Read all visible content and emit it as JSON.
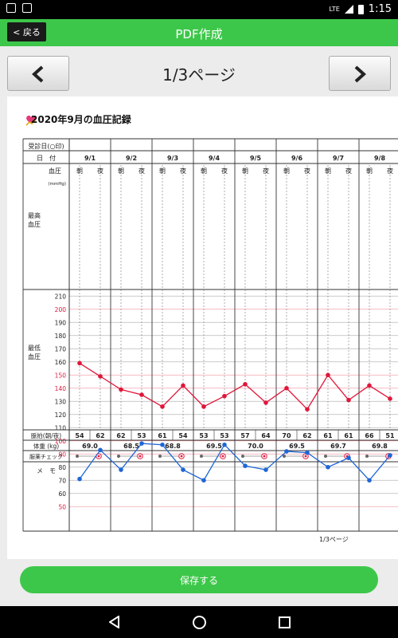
{
  "status_bar": {
    "network": "LTE",
    "time": "1:15"
  },
  "app_bar": {
    "back_label": "< 戻る",
    "title": "PDF作成"
  },
  "pager": {
    "label": "1/3ページ"
  },
  "sheet": {
    "title": "2020年9月の血圧記録",
    "footer_page": "1/3ページ",
    "header": {
      "visit_label": "受診日(○印)",
      "date_label": "日　付",
      "bp_label": "血圧",
      "unit_label": "(mmHg)",
      "morning": "朝",
      "night": "夜",
      "systolic_label": [
        "最高",
        "血圧"
      ],
      "diastolic_label": [
        "最低",
        "血圧"
      ],
      "pulse_label": "脈拍(朝/夜)",
      "weight_label": "体重 (kg)",
      "med_label": "服薬チェック",
      "memo_label": "メ　モ"
    },
    "y_ticks": [
      210,
      200,
      190,
      180,
      170,
      160,
      150,
      140,
      130,
      120,
      110,
      100,
      90,
      80,
      70,
      60,
      50
    ],
    "red_ticks": [
      200,
      150,
      140,
      100,
      90,
      50
    ],
    "days": [
      {
        "date": "9/1",
        "pulse": [
          "54",
          "62"
        ],
        "weight": "69.0"
      },
      {
        "date": "9/2",
        "pulse": [
          "62",
          "53"
        ],
        "weight": "68.5"
      },
      {
        "date": "9/3",
        "pulse": [
          "61",
          "54"
        ],
        "weight": "68.8"
      },
      {
        "date": "9/4",
        "pulse": [
          "53",
          "53"
        ],
        "weight": "69.5"
      },
      {
        "date": "9/5",
        "pulse": [
          "57",
          "64"
        ],
        "weight": "70.0"
      },
      {
        "date": "9/6",
        "pulse": [
          "70",
          "62"
        ],
        "weight": "69.5"
      },
      {
        "date": "9/7",
        "pulse": [
          "61",
          "61"
        ],
        "weight": "69.7"
      },
      {
        "date": "9/8",
        "pulse": [
          "66",
          "51"
        ],
        "weight": "69.8"
      }
    ]
  },
  "chart_data": {
    "type": "line",
    "x": [
      "9/1 朝",
      "9/1 夜",
      "9/2 朝",
      "9/2 夜",
      "9/3 朝",
      "9/3 夜",
      "9/4 朝",
      "9/4 夜",
      "9/5 朝",
      "9/5 夜",
      "9/6 朝",
      "9/6 夜",
      "9/7 朝",
      "9/7 夜",
      "9/8 朝",
      "9/8 夜"
    ],
    "ylim": [
      45,
      215
    ],
    "series": [
      {
        "color": "#e0163a",
        "values": [
          159,
          149,
          139,
          135,
          126,
          142,
          126,
          134,
          143,
          129,
          140,
          124,
          150,
          131,
          142,
          132
        ]
      },
      {
        "color": "#1f66d6",
        "values": [
          71,
          93,
          78,
          98,
          97,
          78,
          70,
          97,
          81,
          78,
          92,
          91,
          80,
          87,
          70,
          89
        ]
      }
    ]
  },
  "save_button": {
    "label": "保存する"
  },
  "colors": {
    "accent": "#3dc74a",
    "systolic": "#e0163a",
    "diastolic": "#1f66d6"
  }
}
